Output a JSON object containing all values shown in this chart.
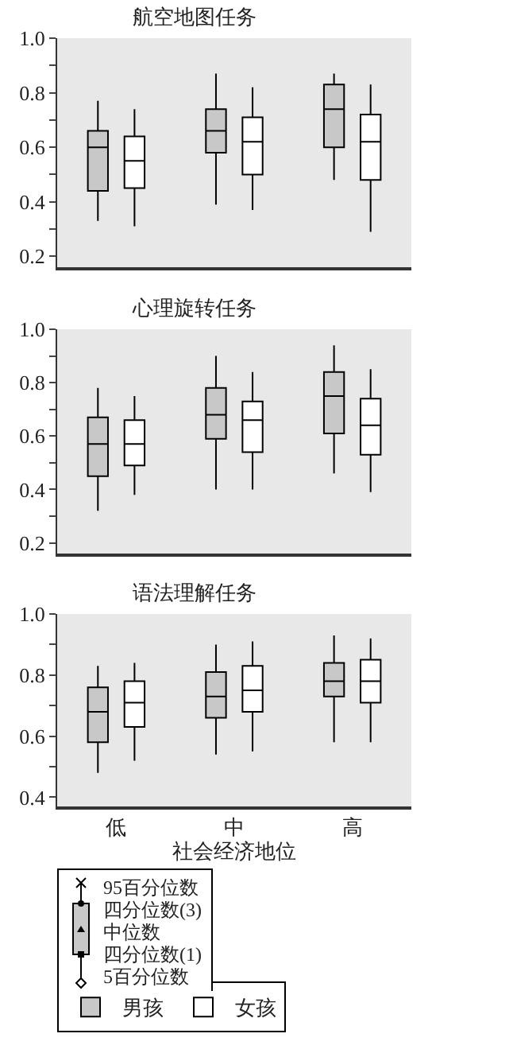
{
  "chart_data": [
    {
      "type": "box",
      "title": "航空地图任务",
      "categories": [
        null,
        null,
        null
      ],
      "ylim": [
        0.16,
        1.0
      ],
      "yticks": [
        0.2,
        {
          "value": 0.3,
          "label": null
        },
        0.4,
        {
          "value": 0.5,
          "label": null
        },
        0.6,
        {
          "value": 0.7,
          "label": null
        },
        0.8,
        {
          "value": 0.9,
          "label": null
        },
        {
          "value": 1.0,
          "label": "1.0"
        }
      ],
      "tick_labels": "y",
      "grid": false,
      "series": [
        {
          "color": "#c8c8c8",
          "boxes": [
            {
              "low": 0.33,
              "q1": 0.44,
              "median": 0.6,
              "q3": 0.66,
              "high": 0.77
            },
            {
              "low": 0.39,
              "q1": 0.58,
              "median": 0.66,
              "q3": 0.74,
              "high": 0.87
            },
            {
              "low": 0.48,
              "q1": 0.6,
              "median": 0.74,
              "q3": 0.83,
              "high": 0.87
            }
          ]
        },
        {
          "color": "#ffffff",
          "boxes": [
            {
              "low": 0.31,
              "q1": 0.45,
              "median": 0.55,
              "q3": 0.64,
              "high": 0.74
            },
            {
              "low": 0.37,
              "q1": 0.5,
              "median": 0.62,
              "q3": 0.71,
              "high": 0.82
            },
            {
              "low": 0.29,
              "q1": 0.48,
              "median": 0.62,
              "q3": 0.72,
              "high": 0.83
            }
          ]
        }
      ]
    },
    {
      "type": "box",
      "title": "心理旋转任务",
      "categories": [
        null,
        null,
        null
      ],
      "ylim": [
        0.16,
        1.0
      ],
      "yticks": [
        0.2,
        {
          "value": 0.3,
          "label": null
        },
        0.4,
        {
          "value": 0.5,
          "label": null
        },
        0.6,
        {
          "value": 0.7,
          "label": null
        },
        0.8,
        {
          "value": 0.9,
          "label": null
        },
        {
          "value": 1.0,
          "label": "1.0"
        }
      ],
      "tick_labels": "y",
      "grid": false,
      "series": [
        {
          "color": "#c8c8c8",
          "boxes": [
            {
              "low": 0.32,
              "q1": 0.45,
              "median": 0.57,
              "q3": 0.67,
              "high": 0.78
            },
            {
              "low": 0.4,
              "q1": 0.59,
              "median": 0.68,
              "q3": 0.78,
              "high": 0.9
            },
            {
              "low": 0.46,
              "q1": 0.61,
              "median": 0.75,
              "q3": 0.84,
              "high": 0.94
            }
          ]
        },
        {
          "color": "#ffffff",
          "boxes": [
            {
              "low": 0.38,
              "q1": 0.49,
              "median": 0.57,
              "q3": 0.66,
              "high": 0.75
            },
            {
              "low": 0.4,
              "q1": 0.54,
              "median": 0.66,
              "q3": 0.73,
              "high": 0.84
            },
            {
              "low": 0.39,
              "q1": 0.53,
              "median": 0.64,
              "q3": 0.74,
              "high": 0.85
            }
          ]
        }
      ]
    },
    {
      "type": "box",
      "title": "语法理解任务",
      "xlabel": "社会经济地位",
      "categories": [
        "低",
        "中",
        "高"
      ],
      "ylim": [
        0.37,
        1.0
      ],
      "yticks": [
        0.4,
        {
          "value": 0.5,
          "label": null
        },
        0.6,
        {
          "value": 0.7,
          "label": null
        },
        0.8,
        {
          "value": 0.9,
          "label": null
        },
        {
          "value": 1.0,
          "label": "1.0"
        }
      ],
      "grid": false,
      "legend": "bottom",
      "annotations": [
        "95百分位数",
        "四分位数(3)",
        "中位数",
        "四分位数(1)",
        "5百分位数"
      ],
      "series": [
        {
          "name": "男孩",
          "color": "#c8c8c8",
          "boxes": [
            {
              "low": 0.48,
              "q1": 0.58,
              "median": 0.68,
              "q3": 0.76,
              "high": 0.83
            },
            {
              "low": 0.54,
              "q1": 0.66,
              "median": 0.73,
              "q3": 0.81,
              "high": 0.9
            },
            {
              "low": 0.58,
              "q1": 0.73,
              "median": 0.78,
              "q3": 0.84,
              "high": 0.93
            }
          ]
        },
        {
          "name": "女孩",
          "color": "#ffffff",
          "boxes": [
            {
              "low": 0.52,
              "q1": 0.63,
              "median": 0.71,
              "q3": 0.78,
              "high": 0.84
            },
            {
              "low": 0.55,
              "q1": 0.68,
              "median": 0.75,
              "q3": 0.83,
              "high": 0.91
            },
            {
              "low": 0.58,
              "q1": 0.71,
              "median": 0.78,
              "q3": 0.85,
              "high": 0.92
            }
          ]
        }
      ]
    }
  ]
}
